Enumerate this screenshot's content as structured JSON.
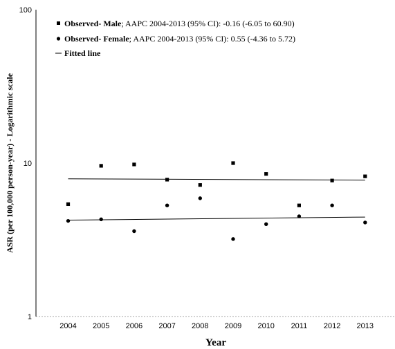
{
  "chart_data": {
    "type": "scatter",
    "xlabel": "Year",
    "ylabel": "ASR (per 100,000 person-year) - Logarithmic scale",
    "yscale": "log",
    "ylim": [
      1,
      100
    ],
    "yticks": [
      {
        "value": 1,
        "label": "1"
      },
      {
        "value": 10,
        "label": "10"
      },
      {
        "value": 100,
        "label": "100"
      }
    ],
    "x": [
      2004,
      2005,
      2006,
      2007,
      2008,
      2009,
      2010,
      2011,
      2012,
      2013
    ],
    "xtick_labels": [
      "2004",
      "2005",
      "2006",
      "2007",
      "2008",
      "2009",
      "2010",
      "2011",
      "2012",
      "2013"
    ],
    "legend_placement": "top-left",
    "grid": false,
    "series": [
      {
        "name": "Observed- Male",
        "legend_rest": "; AAPC 2004-2013 (95% CI): -0.16 (-6.05 to 60.90)",
        "marker": "square",
        "values": [
          5.4,
          9.6,
          9.8,
          7.8,
          7.2,
          10.0,
          8.5,
          5.3,
          7.7,
          8.2
        ],
        "fit": {
          "x": [
            2004,
            2013
          ],
          "y": [
            7.9,
            7.75
          ]
        }
      },
      {
        "name": "Observed- Female",
        "legend_rest": "; AAPC 2004-2013 (95% CI): 0.55 (-4.36 to 5.72)",
        "marker": "circle",
        "values": [
          4.2,
          4.3,
          3.6,
          5.3,
          5.9,
          3.2,
          4.0,
          4.5,
          5.3,
          4.1
        ],
        "fit": {
          "x": [
            2004,
            2013
          ],
          "y": [
            4.25,
            4.45
          ]
        }
      }
    ],
    "fitted_line_label": "Fitted line"
  }
}
